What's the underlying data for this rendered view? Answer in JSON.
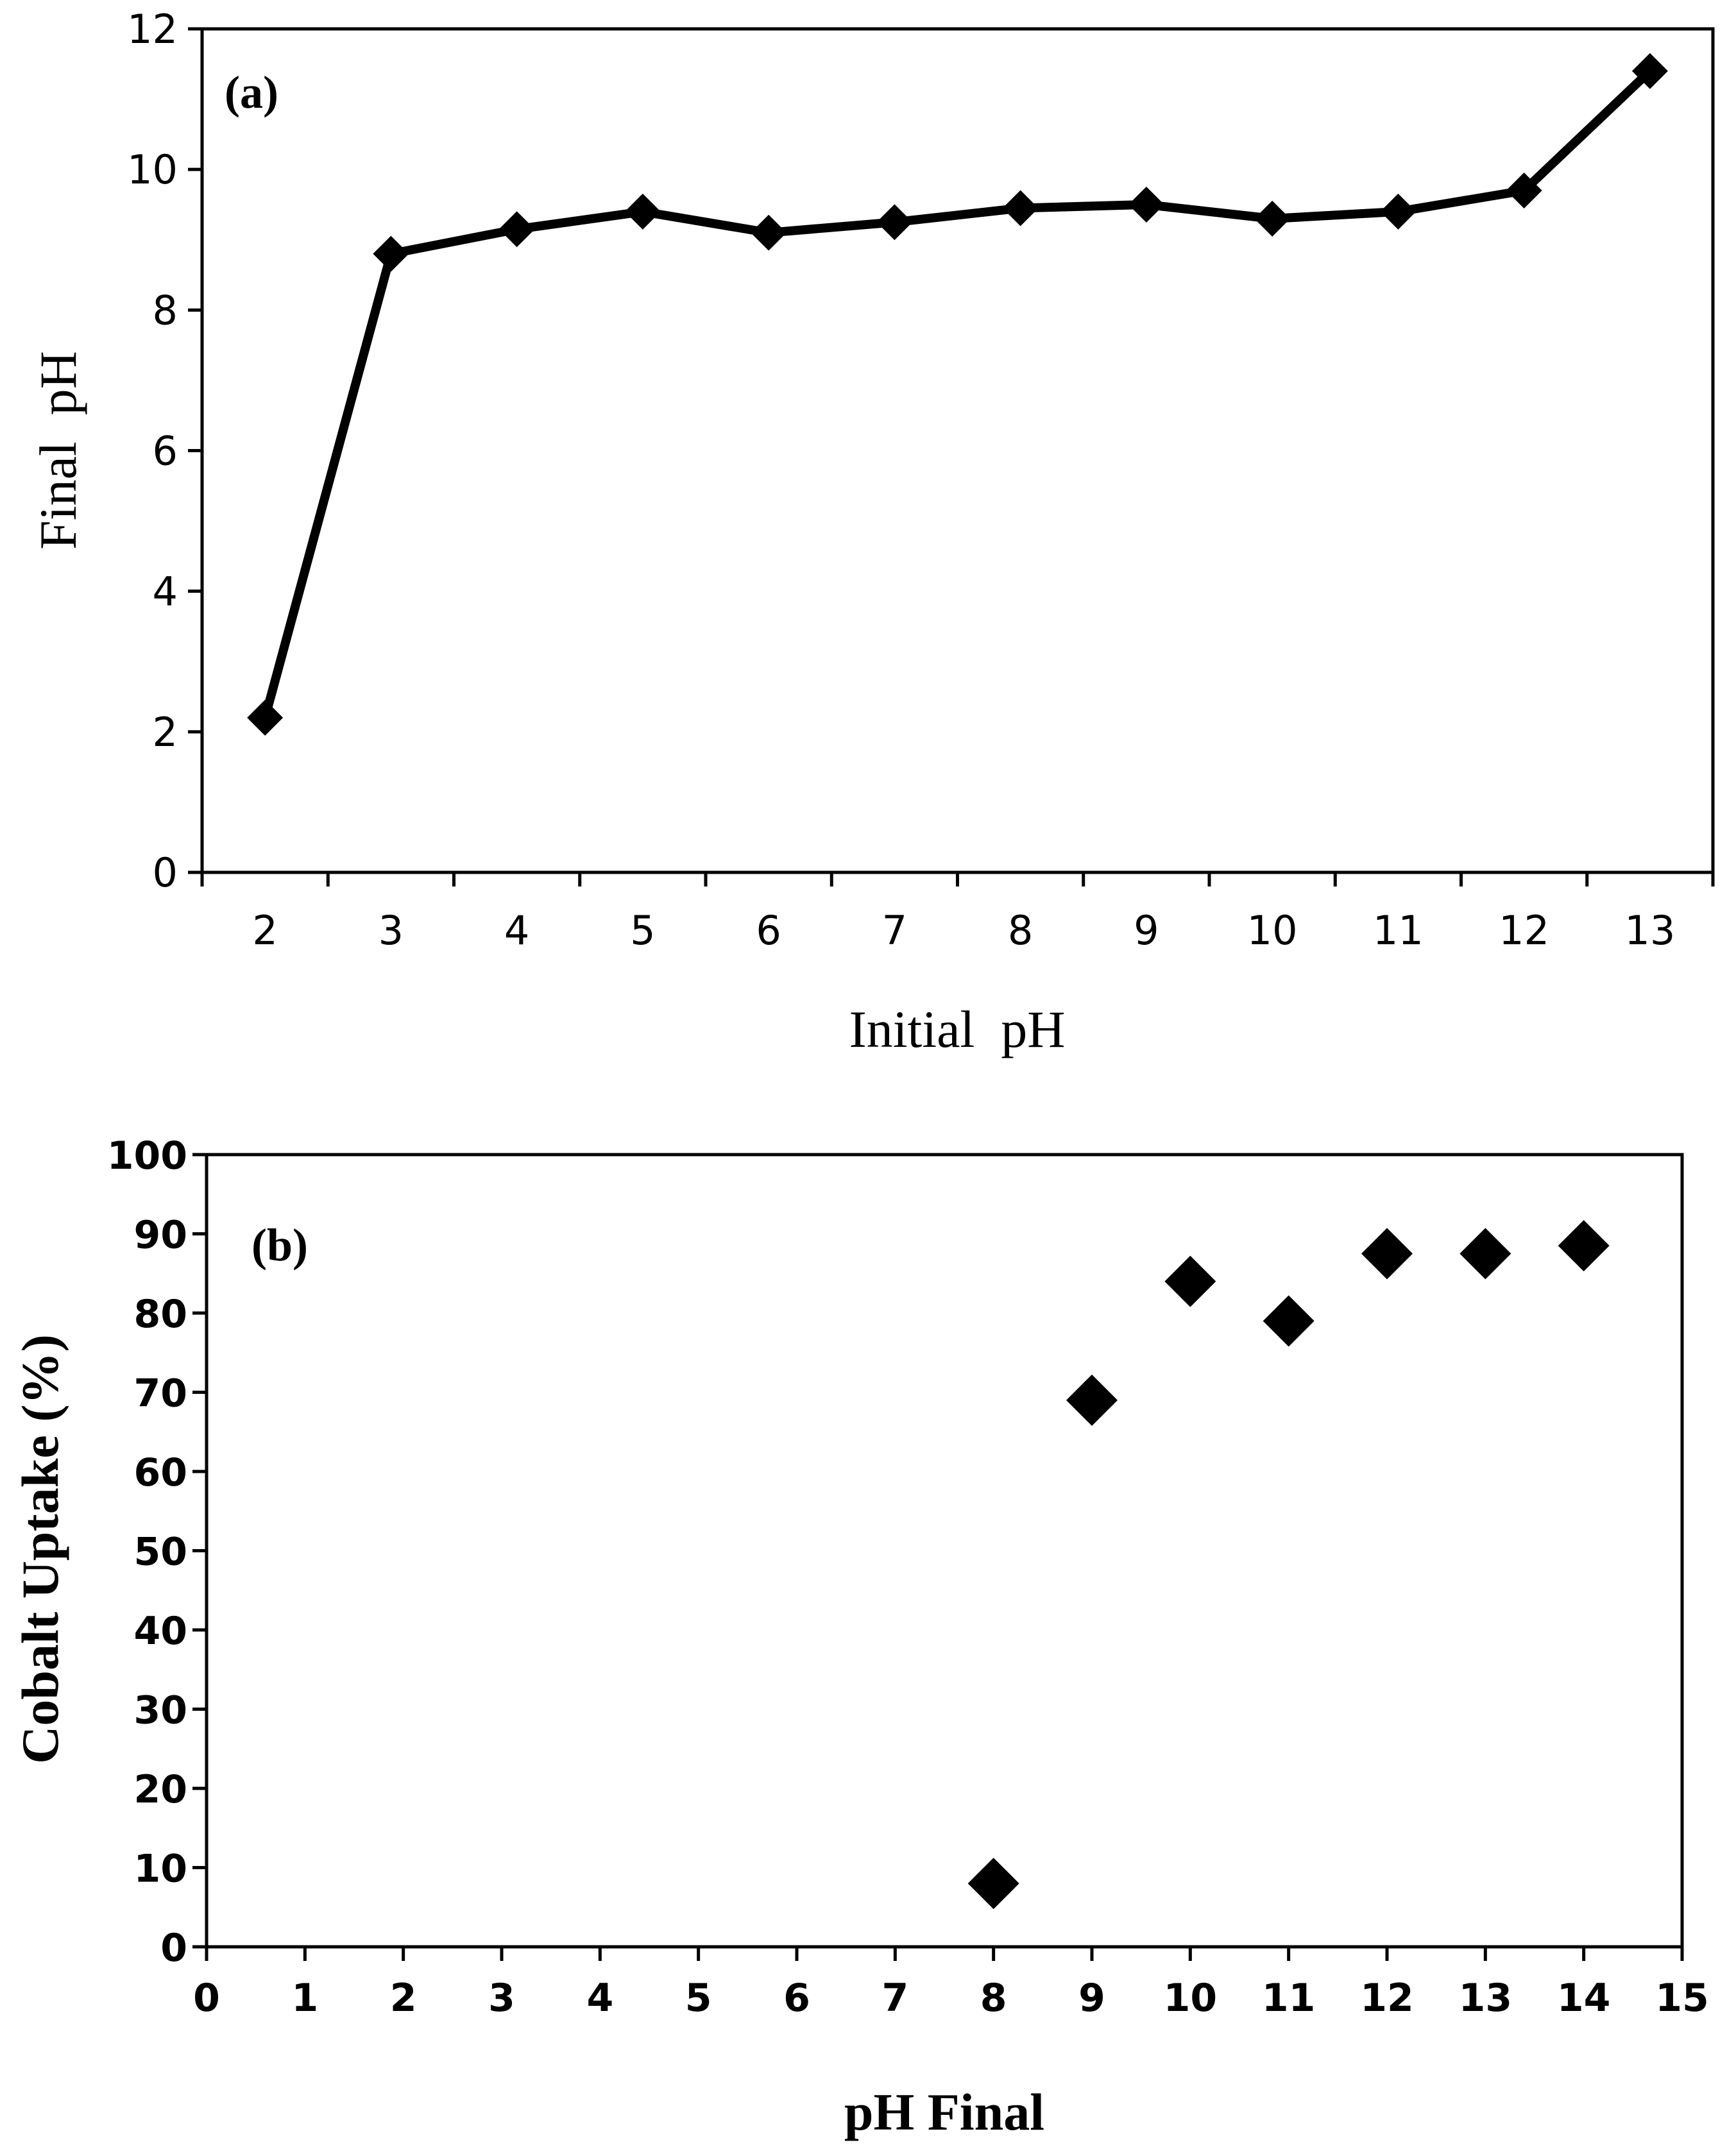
{
  "chart_data": [
    {
      "panel": "(a)",
      "type": "line",
      "marker": "diamond",
      "title": "",
      "xlabel": "Initial  pH",
      "ylabel": "Final  pH",
      "categories": [
        "2",
        "3",
        "4",
        "5",
        "6",
        "7",
        "8",
        "9",
        "10",
        "11",
        "12",
        "13"
      ],
      "series": [
        {
          "name": "Final pH",
          "values": [
            2.2,
            8.8,
            9.15,
            9.4,
            9.1,
            9.25,
            9.45,
            9.5,
            9.3,
            9.4,
            9.7,
            11.4
          ]
        }
      ],
      "yticks": [
        "0",
        "2",
        "4",
        "6",
        "8",
        "10",
        "12"
      ],
      "ylim": [
        0,
        12
      ],
      "grid": false,
      "legend": "none",
      "color": "#000000"
    },
    {
      "panel": "(b)",
      "type": "scatter",
      "marker": "diamond",
      "title": "",
      "xlabel": "pH Final",
      "ylabel": "Cobalt Uptake (%)",
      "series": [
        {
          "name": "Cobalt Uptake",
          "points": [
            {
              "x": 8,
              "y": 8
            },
            {
              "x": 9,
              "y": 69
            },
            {
              "x": 10,
              "y": 84
            },
            {
              "x": 11,
              "y": 79
            },
            {
              "x": 12,
              "y": 87.5
            },
            {
              "x": 13,
              "y": 87.5
            },
            {
              "x": 14,
              "y": 88.5
            }
          ]
        }
      ],
      "xticks": [
        "0",
        "1",
        "2",
        "3",
        "4",
        "5",
        "6",
        "7",
        "8",
        "9",
        "10",
        "11",
        "12",
        "13",
        "14",
        "15"
      ],
      "yticks": [
        "0",
        "10",
        "20",
        "30",
        "40",
        "50",
        "60",
        "70",
        "80",
        "90",
        "100"
      ],
      "xlim": [
        0,
        15
      ],
      "ylim": [
        0,
        100
      ],
      "grid": false,
      "legend": "none",
      "color": "#000000"
    }
  ]
}
